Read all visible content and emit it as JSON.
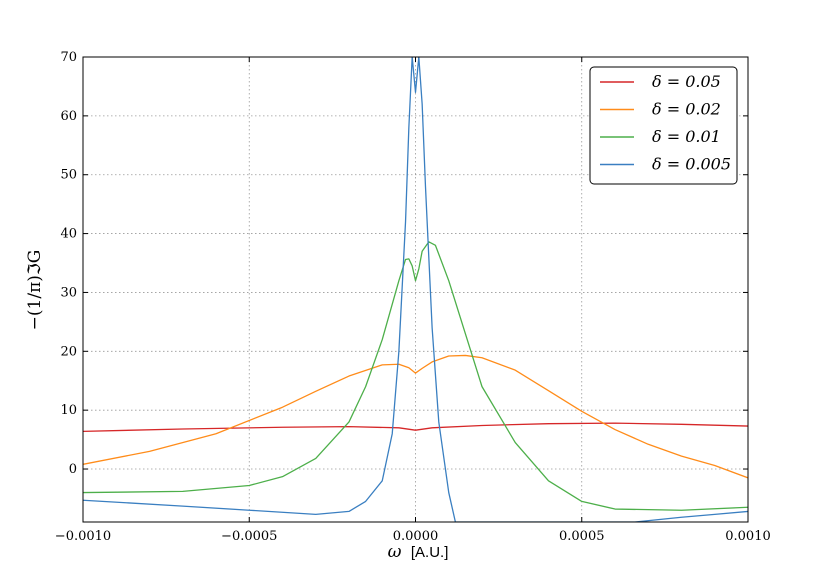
{
  "chart_data": {
    "type": "line",
    "xlabel_symbol": "ω",
    "xlabel_units": "[A.U.]",
    "ylabel": "−(1/π)ℑG",
    "xlim": [
      -0.001,
      0.001
    ],
    "ylim": [
      -9,
      70
    ],
    "xticks": [
      -0.001,
      -0.0005,
      0.0,
      0.0005,
      0.001
    ],
    "xtick_labels": [
      "−0.0010",
      "−0.0005",
      "0.0000",
      "0.0005",
      "0.0010"
    ],
    "yticks": [
      0,
      10,
      20,
      30,
      40,
      50,
      60,
      70
    ],
    "ytick_labels": [
      "0",
      "10",
      "20",
      "30",
      "40",
      "50",
      "60",
      "70"
    ],
    "grid": true,
    "legend_position": "top-right",
    "series": [
      {
        "name": "δ = 0.05",
        "color": "#d62728",
        "points": [
          [
            -0.001,
            6.4
          ],
          [
            -0.0007,
            6.8
          ],
          [
            -0.0004,
            7.1
          ],
          [
            -0.0002,
            7.2
          ],
          [
            -5e-05,
            7.0
          ],
          [
            0.0,
            6.6
          ],
          [
            5e-05,
            7.0
          ],
          [
            0.0002,
            7.4
          ],
          [
            0.0004,
            7.7
          ],
          [
            0.0006,
            7.8
          ],
          [
            0.0008,
            7.6
          ],
          [
            0.001,
            7.3
          ]
        ]
      },
      {
        "name": "δ = 0.02",
        "color": "#ff8c1a",
        "points": [
          [
            -0.001,
            0.8
          ],
          [
            -0.0008,
            3.0
          ],
          [
            -0.0006,
            6.0
          ],
          [
            -0.0004,
            10.5
          ],
          [
            -0.0003,
            13.2
          ],
          [
            -0.0002,
            15.8
          ],
          [
            -0.0001,
            17.7
          ],
          [
            -5e-05,
            17.8
          ],
          [
            -2e-05,
            17.2
          ],
          [
            0.0,
            16.3
          ],
          [
            2e-05,
            17.1
          ],
          [
            5e-05,
            18.2
          ],
          [
            0.0001,
            19.2
          ],
          [
            0.00015,
            19.3
          ],
          [
            0.0002,
            18.9
          ],
          [
            0.0003,
            16.8
          ],
          [
            0.0004,
            13.3
          ],
          [
            0.0005,
            9.8
          ],
          [
            0.0006,
            6.7
          ],
          [
            0.0007,
            4.2
          ],
          [
            0.0008,
            2.2
          ],
          [
            0.0009,
            0.6
          ],
          [
            0.001,
            -1.5
          ]
        ]
      },
      {
        "name": "δ = 0.01",
        "color": "#4daf4a",
        "points": [
          [
            -0.001,
            -4.0
          ],
          [
            -0.0007,
            -3.8
          ],
          [
            -0.0005,
            -2.8
          ],
          [
            -0.0004,
            -1.3
          ],
          [
            -0.0003,
            1.8
          ],
          [
            -0.0002,
            8.0
          ],
          [
            -0.00015,
            14.0
          ],
          [
            -0.0001,
            22.0
          ],
          [
            -5e-05,
            32.0
          ],
          [
            -3e-05,
            35.6
          ],
          [
            -2e-05,
            35.7
          ],
          [
            -1e-05,
            34.5
          ],
          [
            0.0,
            32.0
          ],
          [
            1e-05,
            34.0
          ],
          [
            2e-05,
            37.0
          ],
          [
            4e-05,
            38.6
          ],
          [
            6e-05,
            38.0
          ],
          [
            0.0001,
            32.0
          ],
          [
            0.00015,
            23.0
          ],
          [
            0.0002,
            14.0
          ],
          [
            0.0003,
            4.5
          ],
          [
            0.0004,
            -2.0
          ],
          [
            0.0005,
            -5.5
          ],
          [
            0.0006,
            -6.8
          ],
          [
            0.0008,
            -7.0
          ],
          [
            0.001,
            -6.5
          ]
        ]
      },
      {
        "name": "δ = 0.005",
        "color": "#3a7fc1",
        "points": [
          [
            -0.001,
            -5.3
          ],
          [
            -0.0007,
            -6.3
          ],
          [
            -0.0005,
            -7.0
          ],
          [
            -0.0003,
            -7.7
          ],
          [
            -0.0002,
            -7.2
          ],
          [
            -0.00015,
            -5.5
          ],
          [
            -0.0001,
            -2.0
          ],
          [
            -7e-05,
            6.0
          ],
          [
            -5e-05,
            20.0
          ],
          [
            -3e-05,
            42.0
          ],
          [
            -2e-05,
            58.0
          ],
          [
            -1e-05,
            70.0
          ],
          [
            0.0,
            64.0
          ],
          [
            1e-05,
            70.0
          ],
          [
            2e-05,
            62.0
          ],
          [
            3e-05,
            48.0
          ],
          [
            5e-05,
            24.0
          ],
          [
            7e-05,
            8.0
          ],
          [
            0.0001,
            -4.0
          ],
          [
            0.00012,
            -9.0
          ],
          [
            0.00066,
            -9.0
          ],
          [
            0.0008,
            -8.2
          ],
          [
            0.0009,
            -7.7
          ],
          [
            0.001,
            -7.2
          ]
        ]
      }
    ]
  }
}
